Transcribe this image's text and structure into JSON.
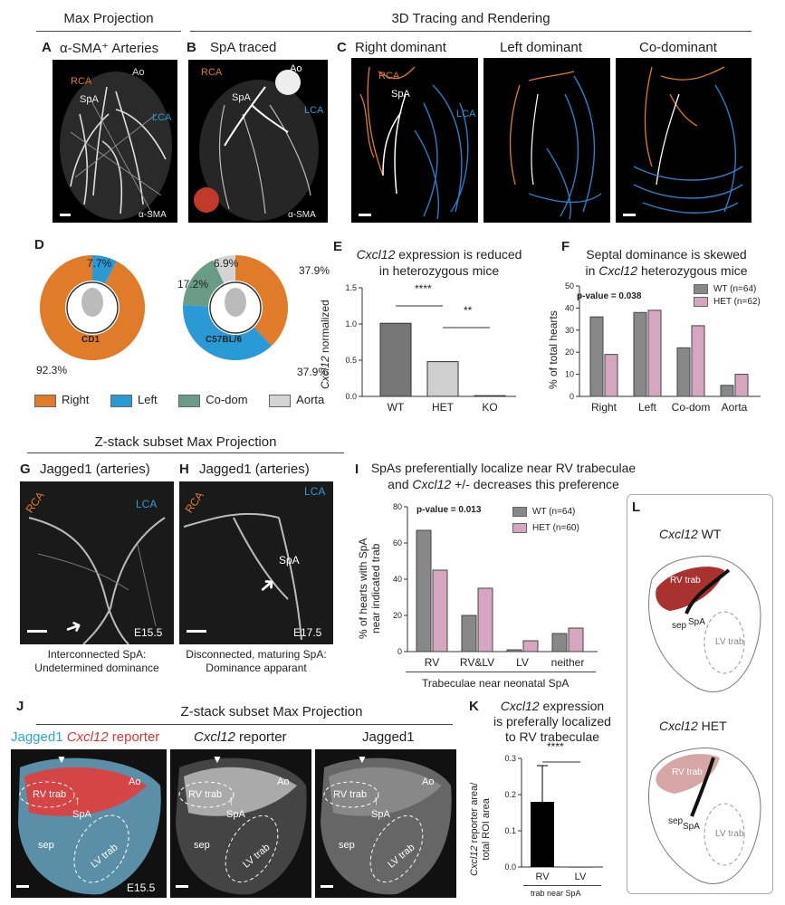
{
  "headers": {
    "max_projection": "Max Projection",
    "tracing": "3D Tracing and Rendering",
    "zstack_gh": "Z-stack subset Max Projection",
    "zstack_j": "Z-stack subset Max Projection"
  },
  "panelA": {
    "letter": "A",
    "title": "α-SMA⁺ Arteries",
    "ao": "Ao",
    "rca": "RCA",
    "spa": "SpA",
    "lca": "LCA",
    "stain": "α-SMA"
  },
  "panelB": {
    "letter": "B",
    "title": "SpA traced",
    "ao": "Ao",
    "rca": "RCA",
    "spa": "SpA",
    "lca": "LCA",
    "stain": "α-SMA"
  },
  "panelC": {
    "letter": "C",
    "titles": [
      "Right dominant",
      "Left dominant",
      "Co-dominant"
    ],
    "rca": "RCA",
    "spa": "SpA",
    "lca": "LCA"
  },
  "panelD": {
    "letter": "D",
    "cd1": {
      "label": "CD1",
      "pct_left": "7.7%",
      "pct_right": "92.3%"
    },
    "c57": {
      "label": "C57BL/6",
      "pct_aorta": "6.9%",
      "pct_codom": "17.2%",
      "pct_right": "37.9%",
      "pct_left": "37.9%"
    },
    "legend": [
      "Right",
      "Left",
      "Co-dom",
      "Aorta"
    ],
    "colors": {
      "right": "#e07b2a",
      "left": "#2a9ad6",
      "codom": "#6a9b86",
      "aorta": "#d4d4d4"
    }
  },
  "panelE": {
    "letter": "E",
    "title_italic": "Cxcl12",
    "title_rest1": " expression is reduced",
    "title_line2": "in heterozygous mice",
    "ylabel_italic": "Cxcl12",
    "ylabel_rest": " normalized",
    "sig1": "****",
    "sig2": "**",
    "chart_data": {
      "type": "bar",
      "categories": [
        "WT",
        "HET",
        "KO"
      ],
      "values": [
        1.01,
        0.48,
        0.01
      ],
      "ylim": [
        0,
        1.5
      ],
      "yticks": [
        "0.0",
        "0.5",
        "1.0",
        "1.5"
      ],
      "colors": [
        "#777777",
        "#cfcfcf",
        "#ffffff"
      ]
    }
  },
  "panelF": {
    "letter": "F",
    "title_line1": "Septal dominance is skewed",
    "title_pre": "in ",
    "title_italic": "Cxcl12",
    "title_post": " heterozygous mice",
    "pvalue": "p-value = 0.038",
    "ylabel": "% of total hearts",
    "chart_data": {
      "type": "bar",
      "categories": [
        "Right",
        "Left",
        "Co-dom",
        "Aorta"
      ],
      "series": [
        {
          "name": "WT (n=64)",
          "values": [
            36,
            38,
            22,
            5
          ],
          "color": "#888888"
        },
        {
          "name": "HET (n=62)",
          "values": [
            19,
            39,
            32,
            10
          ],
          "color": "#d6a6c0"
        }
      ],
      "ylim": [
        0,
        50
      ],
      "yticks": [
        "0",
        "10",
        "20",
        "30",
        "40",
        "50"
      ]
    }
  },
  "panelG": {
    "letter": "G",
    "title": "Jagged1 (arteries)",
    "rca": "RCA",
    "lca": "LCA",
    "stage": "E15.5",
    "cap1": "Interconnected SpA:",
    "cap2": "Undetermined dominance"
  },
  "panelH": {
    "letter": "H",
    "title": "Jagged1 (arteries)",
    "rca": "RCA",
    "lca": "LCA",
    "spa": "SpA",
    "stage": "E17.5",
    "cap1": "Disconnected, maturing SpA:",
    "cap2": "Dominance apparant"
  },
  "panelI": {
    "letter": "I",
    "title_line1": "SpAs preferentially localize near RV trabeculae",
    "title_pre": "and ",
    "title_italic": "Cxcl12",
    "title_post": " +/- decreases this preference",
    "pvalue": "p-value = 0.013",
    "ylabel1": "% of hearts with SpA",
    "ylabel2": "near indicated trab",
    "xlabel": "Trabeculae near neonatal SpA",
    "chart_data": {
      "type": "bar",
      "categories": [
        "RV",
        "RV&LV",
        "LV",
        "neither"
      ],
      "series": [
        {
          "name": "WT (n=64)",
          "values": [
            67,
            20,
            1,
            10
          ],
          "color": "#888888"
        },
        {
          "name": "HET (n=60)",
          "values": [
            45,
            35,
            6,
            13
          ],
          "color": "#d6a6c0"
        }
      ],
      "ylim": [
        0,
        80
      ],
      "yticks": [
        "0",
        "20",
        "40",
        "60",
        "80"
      ]
    }
  },
  "panelJ": {
    "letter": "J",
    "t1a": "Jagged1 ",
    "t1b_italic": "Cxcl12",
    "t1c": " reporter",
    "t2_italic": "Cxcl12",
    "t2_rest": " reporter",
    "t3": "Jagged1",
    "rvtrab": "RV trab",
    "lvtrab": "LV trab",
    "spa": "SpA",
    "sep": "sep",
    "ao": "Ao",
    "stage": "E15.5"
  },
  "panelK": {
    "letter": "K",
    "title_italic": "Cxcl12",
    "title_rest": " expression",
    "title_line2": "is preferally localized",
    "title_line3": "to RV trabeculae",
    "ylabel_italic": "Cxcl12",
    "ylabel_rest": " reporter area/",
    "ylabel2": "total ROI area",
    "sig": "****",
    "xlabel": "trab near SpA",
    "chart_data": {
      "type": "bar",
      "categories": [
        "RV",
        "LV"
      ],
      "values": [
        0.18,
        0.0
      ],
      "error": [
        0.1,
        0.0
      ],
      "ylim": [
        0,
        0.3
      ],
      "yticks": [
        "0.0",
        "0.1",
        "0.2",
        "0.3"
      ]
    }
  },
  "panelL": {
    "letter": "L",
    "wt_italic": "Cxcl12",
    "wt_rest": " WT",
    "het_italic": "Cxcl12",
    "het_rest": " HET",
    "rvtrab": "RV trab",
    "lvtrab": "LV trab",
    "spa": "SpA",
    "sep": "sep"
  }
}
